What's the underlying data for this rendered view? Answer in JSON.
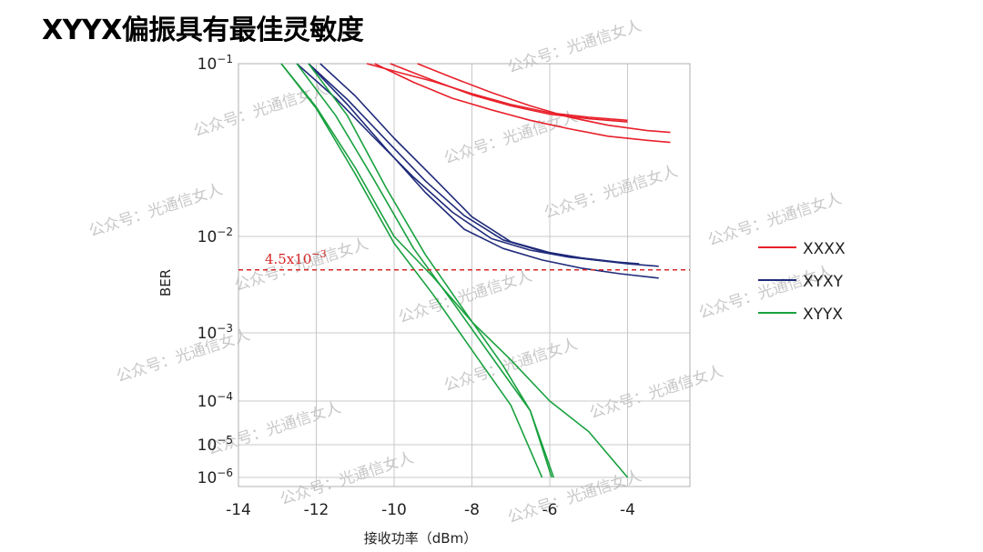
{
  "slide": {
    "title": "XYYX偏振具有最佳灵敏度"
  },
  "watermark": {
    "text": "公众号：光通信女人"
  },
  "chart_data": {
    "type": "line",
    "xlabel": "接收功率（dBm）",
    "ylabel": "BER",
    "xlim": [
      -14,
      -2.3
    ],
    "x_ticks": [
      -14,
      -12,
      -10,
      -8,
      -6,
      -4
    ],
    "y_log": true,
    "y_ticks": [
      {
        "exp": -1,
        "value": 0.1
      },
      {
        "exp": -2,
        "value": 0.01
      },
      {
        "exp": -3,
        "value": 0.001
      },
      {
        "exp": -4,
        "value": 0.0001
      },
      {
        "exp": -5,
        "value": 1e-05
      },
      {
        "exp": -6,
        "value": 1e-06
      }
    ],
    "grid": true,
    "legend_position": "right",
    "threshold": {
      "label_base": "4.5x10",
      "label_exp": "−3",
      "value": 0.0045,
      "color": "#d62728"
    },
    "groups": [
      {
        "name": "XXXX",
        "color": "#e8202a",
        "series": [
          {
            "x": [
              -10.7,
              -9.8,
              -9.0,
              -8.0,
              -7.0,
              -6.0,
              -5.0,
              -4.0
            ],
            "y": [
              0.1,
              0.088,
              0.079,
              0.067,
              0.058,
              0.052,
              0.049,
              0.047
            ]
          },
          {
            "x": [
              -10.1,
              -9.0,
              -8.0,
              -7.0,
              -6.0,
              -5.0,
              -4.0
            ],
            "y": [
              0.1,
              0.08,
              0.066,
              0.057,
              0.051,
              0.048,
              0.046
            ]
          },
          {
            "x": [
              -9.4,
              -8.5,
              -7.5,
              -6.5,
              -5.5,
              -4.5,
              -3.5,
              -2.9
            ],
            "y": [
              0.1,
              0.083,
              0.068,
              0.057,
              0.049,
              0.044,
              0.041,
              0.04
            ]
          },
          {
            "x": [
              -10.5,
              -9.5,
              -8.5,
              -7.5,
              -6.5,
              -5.5,
              -4.5,
              -3.5,
              -2.9
            ],
            "y": [
              0.1,
              0.078,
              0.063,
              0.054,
              0.047,
              0.042,
              0.038,
              0.036,
              0.035
            ]
          }
        ]
      },
      {
        "name": "XYXY",
        "color": "#1f2a7a",
        "series": [
          {
            "x": [
              -12.5,
              -11.5,
              -10.5,
              -9.5,
              -8.5,
              -7.5,
              -6.5,
              -5.5,
              -4.5,
              -4.0
            ],
            "y": [
              0.1,
              0.063,
              0.037,
              0.022,
              0.0138,
              0.0095,
              0.0072,
              0.0061,
              0.0055,
              0.0053
            ]
          },
          {
            "x": [
              -12.2,
              -11.2,
              -10.2,
              -9.2,
              -8.2,
              -7.2,
              -6.2,
              -5.2,
              -4.2,
              -3.7
            ],
            "y": [
              0.1,
              0.062,
              0.036,
              0.021,
              0.0132,
              0.0092,
              0.007,
              0.006,
              0.0054,
              0.0052
            ]
          },
          {
            "x": [
              -11.9,
              -11.0,
              -10.0,
              -9.0,
              -8.0,
              -7.0,
              -6.0,
              -5.0,
              -4.0,
              -3.2
            ],
            "y": [
              0.1,
              0.065,
              0.037,
              0.022,
              0.013,
              0.0088,
              0.0068,
              0.0058,
              0.0052,
              0.0049
            ]
          },
          {
            "x": [
              -12.2,
              -11.2,
              -10.2,
              -9.2,
              -8.2,
              -7.2,
              -6.2,
              -5.2,
              -4.2,
              -3.2
            ],
            "y": [
              0.1,
              0.058,
              0.032,
              0.018,
              0.011,
              0.0075,
              0.0057,
              0.0047,
              0.0041,
              0.0037
            ]
          }
        ]
      },
      {
        "name": "XYYX",
        "color": "#19a13f",
        "series": [
          {
            "x": [
              -12.9,
              -12.0,
              -11.0,
              -10.0,
              -9.0,
              -8.0,
              -7.0,
              -6.2
            ],
            "y": [
              0.1,
              0.055,
              0.023,
              0.0085,
              0.0025,
              0.00056,
              8e-05,
              1e-06
            ]
          },
          {
            "x": [
              -12.5,
              -11.5,
              -10.5,
              -9.5,
              -8.5,
              -7.5,
              -6.5,
              -5.9
            ],
            "y": [
              0.1,
              0.05,
              0.021,
              0.0075,
              0.0021,
              0.00045,
              6e-05,
              1e-06
            ]
          },
          {
            "x": [
              -12.9,
              -12.0,
              -11.0,
              -10.0,
              -9.0,
              -8.0,
              -7.0,
              -6.0,
              -5.0,
              -4.0
            ],
            "y": [
              0.1,
              0.056,
              0.025,
              0.01,
              0.0038,
              0.0013,
              0.0004,
              0.0001,
              2e-05,
              1e-06
            ]
          },
          {
            "x": [
              -12.2,
              -11.2,
              -10.2,
              -9.2,
              -8.2,
              -7.2,
              -6.5,
              -5.95
            ],
            "y": [
              0.1,
              0.05,
              0.019,
              0.0065,
              0.0017,
              0.00033,
              6e-05,
              1e-06
            ]
          }
        ]
      }
    ]
  }
}
